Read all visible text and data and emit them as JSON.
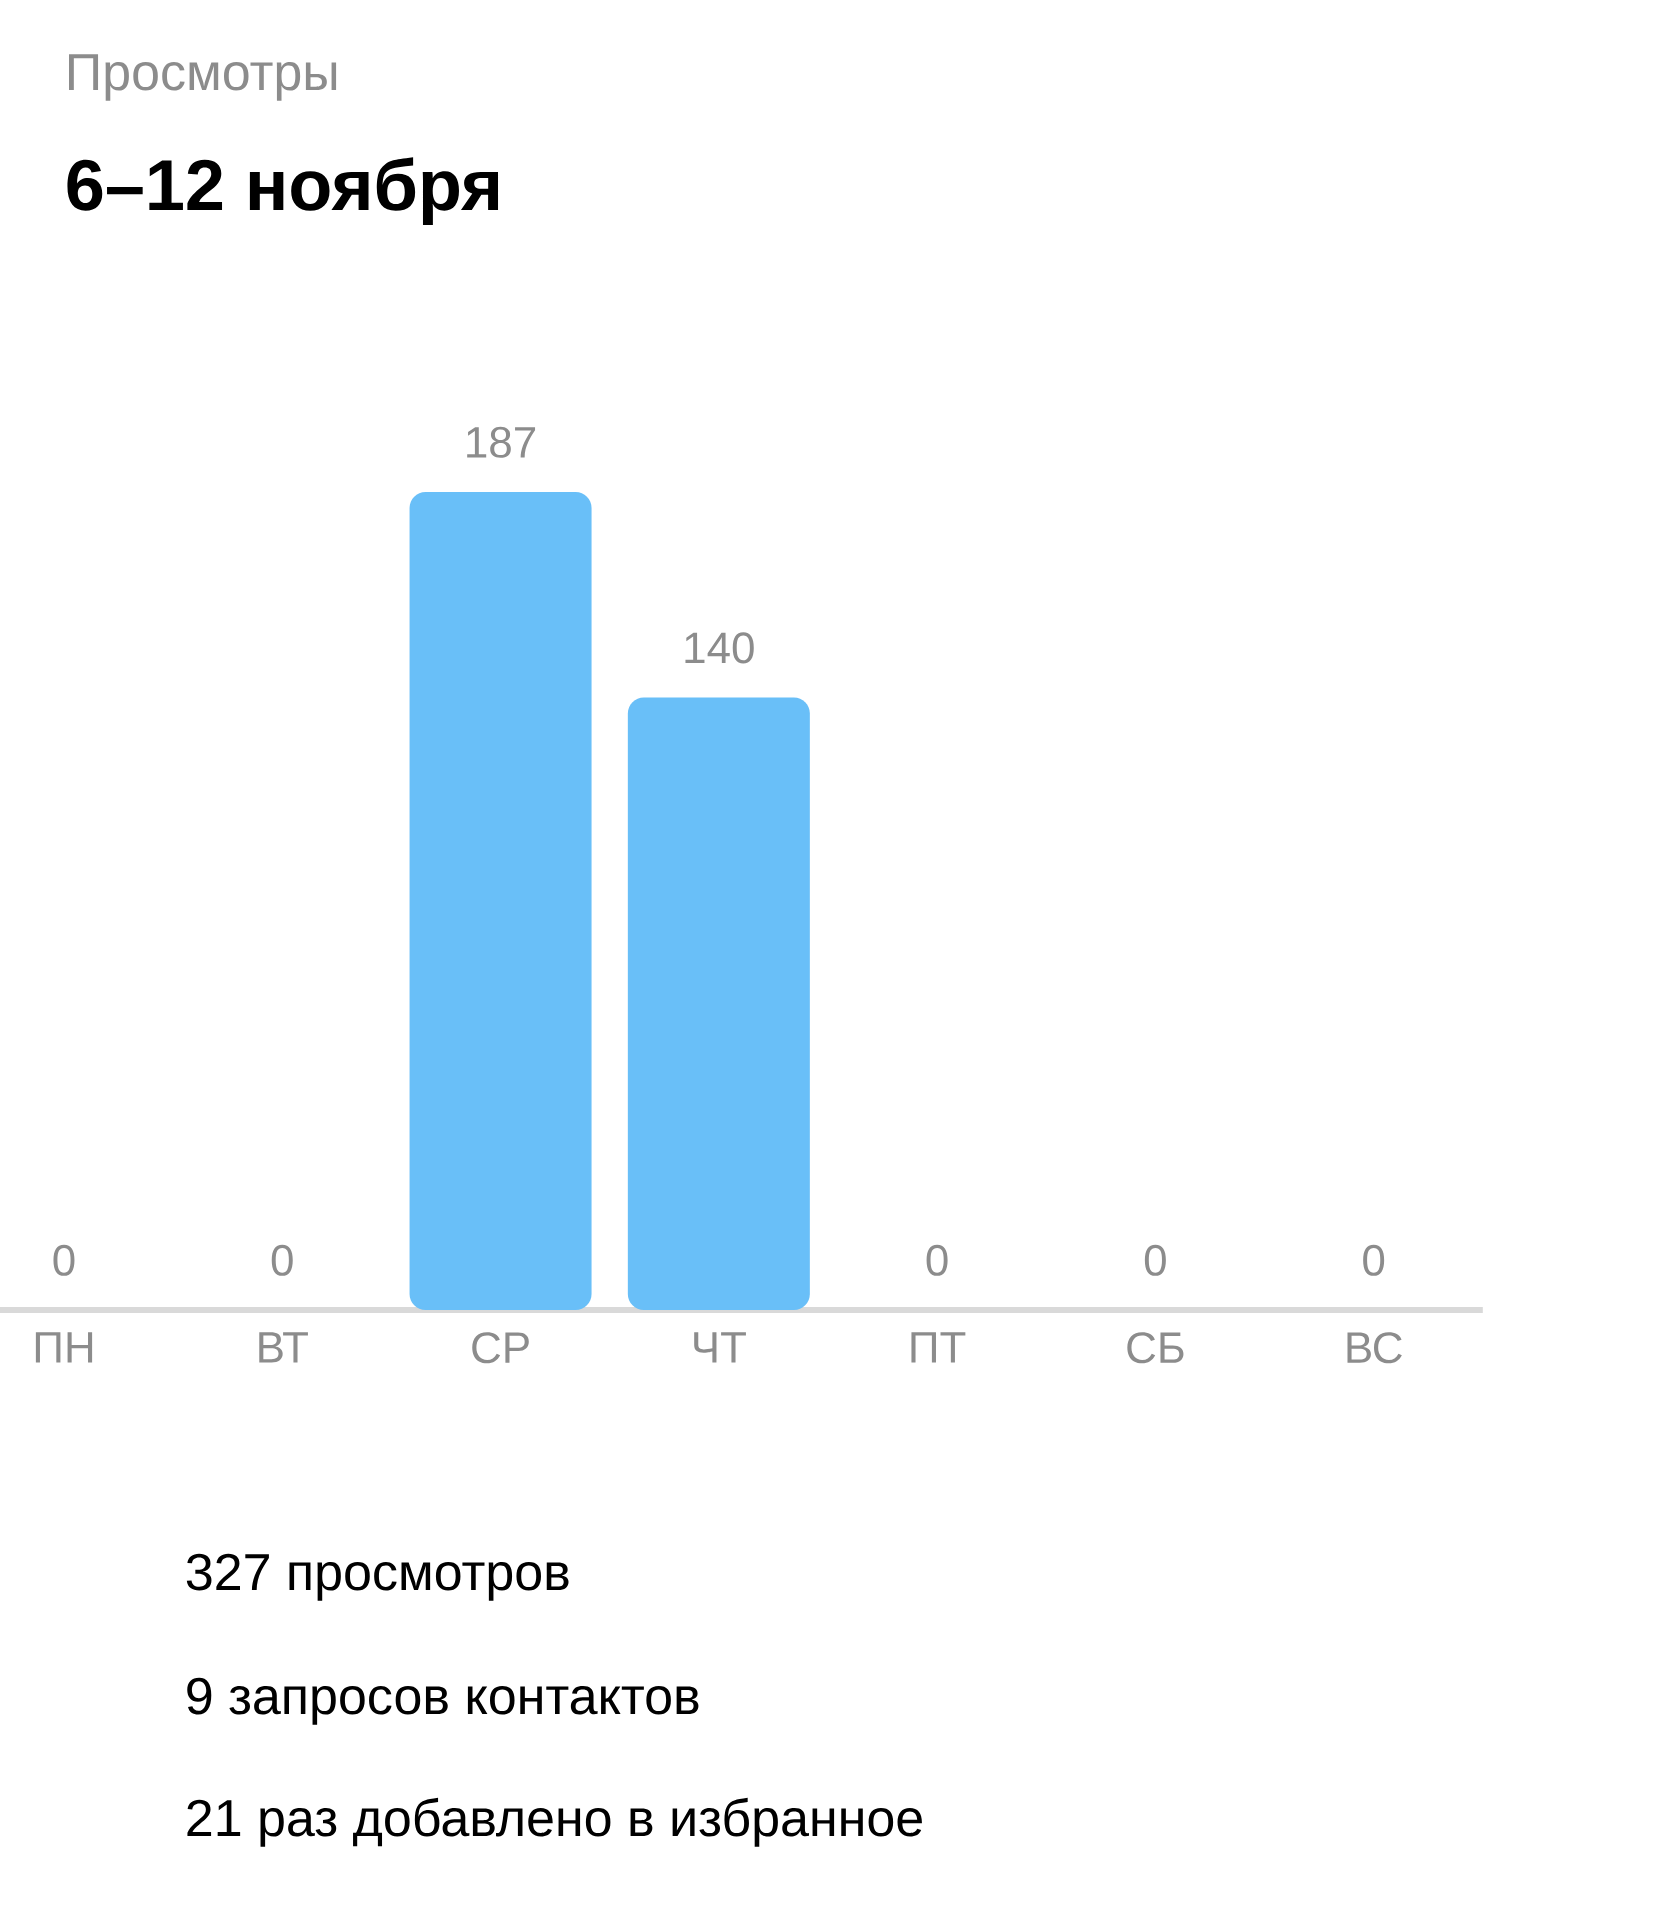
{
  "chart_data": {
    "type": "bar",
    "subtitle": "Просмотры",
    "title": "6–12 ноября",
    "categories": [
      "ПН",
      "ВТ",
      "СР",
      "ЧТ",
      "ПТ",
      "СБ",
      "ВС"
    ],
    "values": [
      0,
      0,
      187,
      140,
      0,
      0,
      0
    ],
    "color": "#69bff8",
    "data_labels": true,
    "annotations": [
      "327 просмотров",
      "9 запросов контактов",
      "21 раз добавлено в избранное"
    ]
  }
}
